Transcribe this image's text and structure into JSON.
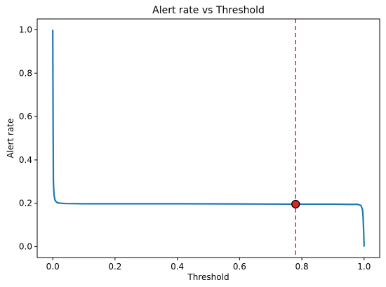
{
  "chart_data": {
    "type": "line",
    "title": "Alert rate vs Threshold",
    "xlabel": "Threshold",
    "ylabel": "Alert rate",
    "xlim": [
      -0.05,
      1.05
    ],
    "ylim": [
      -0.05,
      1.05
    ],
    "xticks": [
      0.0,
      0.2,
      0.4,
      0.6,
      0.8,
      1.0
    ],
    "xtick_labels": [
      "0.0",
      "0.2",
      "0.4",
      "0.6",
      "0.8",
      "1.0"
    ],
    "yticks": [
      0.0,
      0.2,
      0.4,
      0.6,
      0.8,
      1.0
    ],
    "ytick_labels": [
      "0.0",
      "0.2",
      "0.4",
      "0.6",
      "0.8",
      "1.0"
    ],
    "grid": false,
    "series": [
      {
        "color": "#1f77b4",
        "x": [
          0.0,
          0.001,
          0.002,
          0.004,
          0.007,
          0.012,
          0.02,
          0.04,
          0.1,
          0.2,
          0.4,
          0.6,
          0.78,
          0.9,
          0.95,
          0.98,
          0.99,
          0.995,
          0.997,
          0.999,
          1.0
        ],
        "y": [
          1.0,
          0.6,
          0.3,
          0.24,
          0.215,
          0.205,
          0.201,
          0.199,
          0.198,
          0.198,
          0.198,
          0.197,
          0.196,
          0.196,
          0.195,
          0.195,
          0.19,
          0.17,
          0.13,
          0.05,
          0.0
        ]
      }
    ],
    "threshold_line": {
      "x": 0.78,
      "color": "#d62728",
      "style": "dashed"
    },
    "marker": {
      "x": 0.78,
      "y": 0.196,
      "fill": "#d62728",
      "edge": "#000000"
    }
  }
}
